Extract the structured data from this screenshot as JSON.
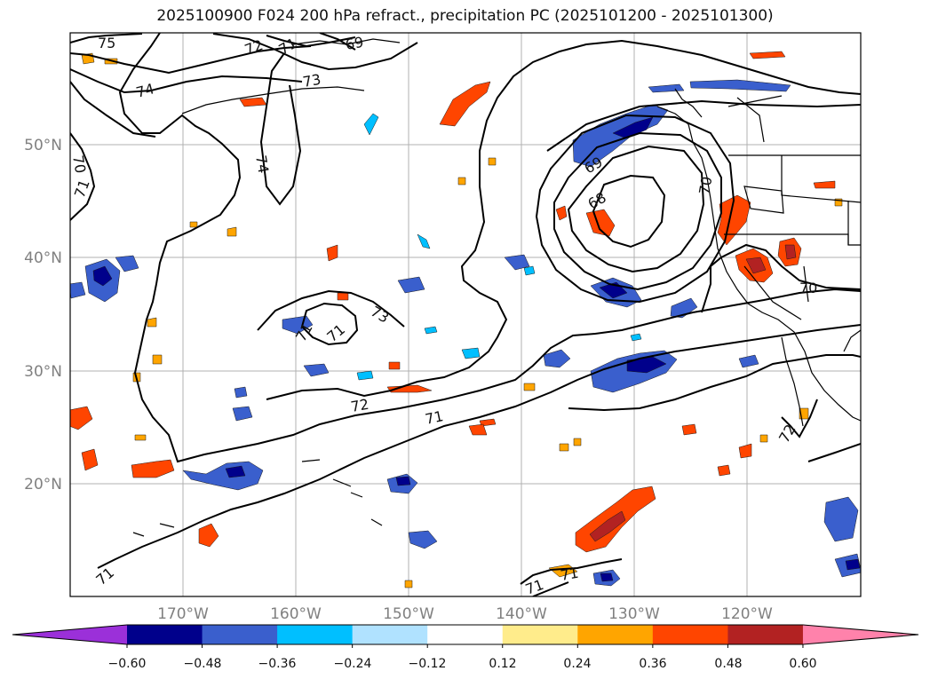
{
  "title": "2025100900 F024 200 hPa refract., precipitation PC (2025101200 - 2025101300)",
  "lat_labels": [
    "50°N",
    "40°N",
    "30°N",
    "20°N"
  ],
  "lon_labels": [
    "170°W",
    "160°W",
    "150°W",
    "140°W",
    "130°W",
    "120°W"
  ],
  "contour_labels": [
    "75",
    "72",
    "71",
    "69",
    "73",
    "74",
    "70",
    "71",
    "74",
    "73",
    "71",
    "72",
    "71",
    "69",
    "68",
    "70",
    "70",
    "72",
    "71",
    "71",
    "71",
    "71"
  ],
  "colorbar": {
    "colors": [
      "#9b30d9",
      "#00008b",
      "#3a5fcd",
      "#00bfff",
      "#b0e2ff",
      "#ffffff",
      "#ffec8b",
      "#ffa500",
      "#ff4500",
      "#b22222",
      "#ff82ab"
    ],
    "tick_labels": [
      "−0.60",
      "−0.48",
      "−0.36",
      "−0.24",
      "−0.12",
      "0.12",
      "0.24",
      "0.36",
      "0.48",
      "0.60"
    ]
  }
}
